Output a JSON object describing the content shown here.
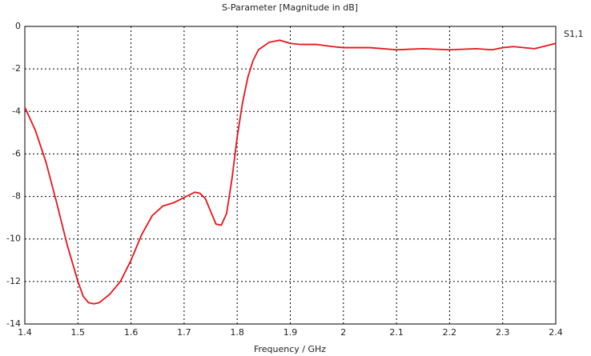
{
  "chart_data": {
    "type": "line",
    "title": "S-Parameter [Magnitude in dB]",
    "x_label": "Frequency / GHz",
    "x": [
      1.4,
      1.42,
      1.44,
      1.46,
      1.48,
      1.5,
      1.51,
      1.52,
      1.53,
      1.54,
      1.56,
      1.58,
      1.6,
      1.62,
      1.64,
      1.66,
      1.68,
      1.7,
      1.72,
      1.73,
      1.74,
      1.75,
      1.76,
      1.77,
      1.78,
      1.79,
      1.8,
      1.81,
      1.82,
      1.83,
      1.84,
      1.86,
      1.88,
      1.9,
      1.92,
      1.95,
      1.98,
      2.0,
      2.05,
      2.1,
      2.15,
      2.2,
      2.25,
      2.28,
      2.3,
      2.32,
      2.36,
      2.4
    ],
    "series": [
      {
        "name": "S1,1",
        "color": "#e8141c",
        "values": [
          -3.8,
          -4.9,
          -6.4,
          -8.3,
          -10.3,
          -12.0,
          -12.7,
          -13.0,
          -13.05,
          -13.0,
          -12.6,
          -12.0,
          -11.0,
          -9.8,
          -8.9,
          -8.45,
          -8.3,
          -8.05,
          -7.8,
          -7.85,
          -8.1,
          -8.7,
          -9.3,
          -9.35,
          -8.8,
          -7.2,
          -5.2,
          -3.6,
          -2.4,
          -1.6,
          -1.1,
          -0.75,
          -0.65,
          -0.8,
          -0.85,
          -0.85,
          -0.95,
          -1.0,
          -1.0,
          -1.1,
          -1.05,
          -1.1,
          -1.05,
          -1.1,
          -1.0,
          -0.95,
          -1.05,
          -0.8
        ]
      }
    ],
    "xlim": [
      1.4,
      2.4
    ],
    "xticks": [
      1.4,
      1.5,
      1.6,
      1.7,
      1.8,
      1.9,
      2,
      2.1,
      2.2,
      2.3,
      2.4
    ],
    "ylim": [
      -14,
      0
    ],
    "yticks": [
      0,
      -2,
      -4,
      -6,
      -8,
      -10,
      -12,
      -14
    ],
    "grid": true
  }
}
